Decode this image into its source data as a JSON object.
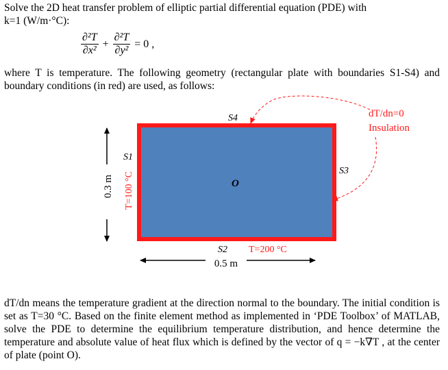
{
  "problem": {
    "intro_line1": "Solve the 2D heat transfer problem of elliptic partial differential equation (PDE) with",
    "intro_line2": "k=1 (W/m·°C):",
    "equation": {
      "term1_num": "∂²T",
      "term1_den": "∂x²",
      "plus": "+",
      "term2_num": "∂²T",
      "term2_den": "∂y²",
      "rhs": "= 0 ,"
    },
    "geometry_text": "where T is temperature. The following geometry (rectangular plate with boundaries S1-S4) and boundary conditions (in red) are used, as follows:",
    "closing_text": "dT/dn means the temperature gradient at the direction normal to the boundary. The initial condition is set as T=30 °C. Based on the finite element method as implemented in ‘PDE Toolbox’ of MATLAB, solve the PDE to determine the equilibrium temperature distribution, and hence determine the temperature and absolute value of heat flux which is defined by the vector of q = −k∇T , at the center of plate (point O)."
  },
  "diagram": {
    "plate_fill": "#4f81bd",
    "boundary_color": "#ff1a1a",
    "labels": {
      "s1": "S1",
      "s2": "S2",
      "s3": "S3",
      "s4": "S4",
      "center": "O",
      "left_bc": "T=100 °C",
      "bottom_bc": "T=200 °C",
      "insulation_line1": "dT/dn=0",
      "insulation_line2": "Insulation",
      "height": "0.3 m",
      "width": "0.5 m"
    }
  }
}
